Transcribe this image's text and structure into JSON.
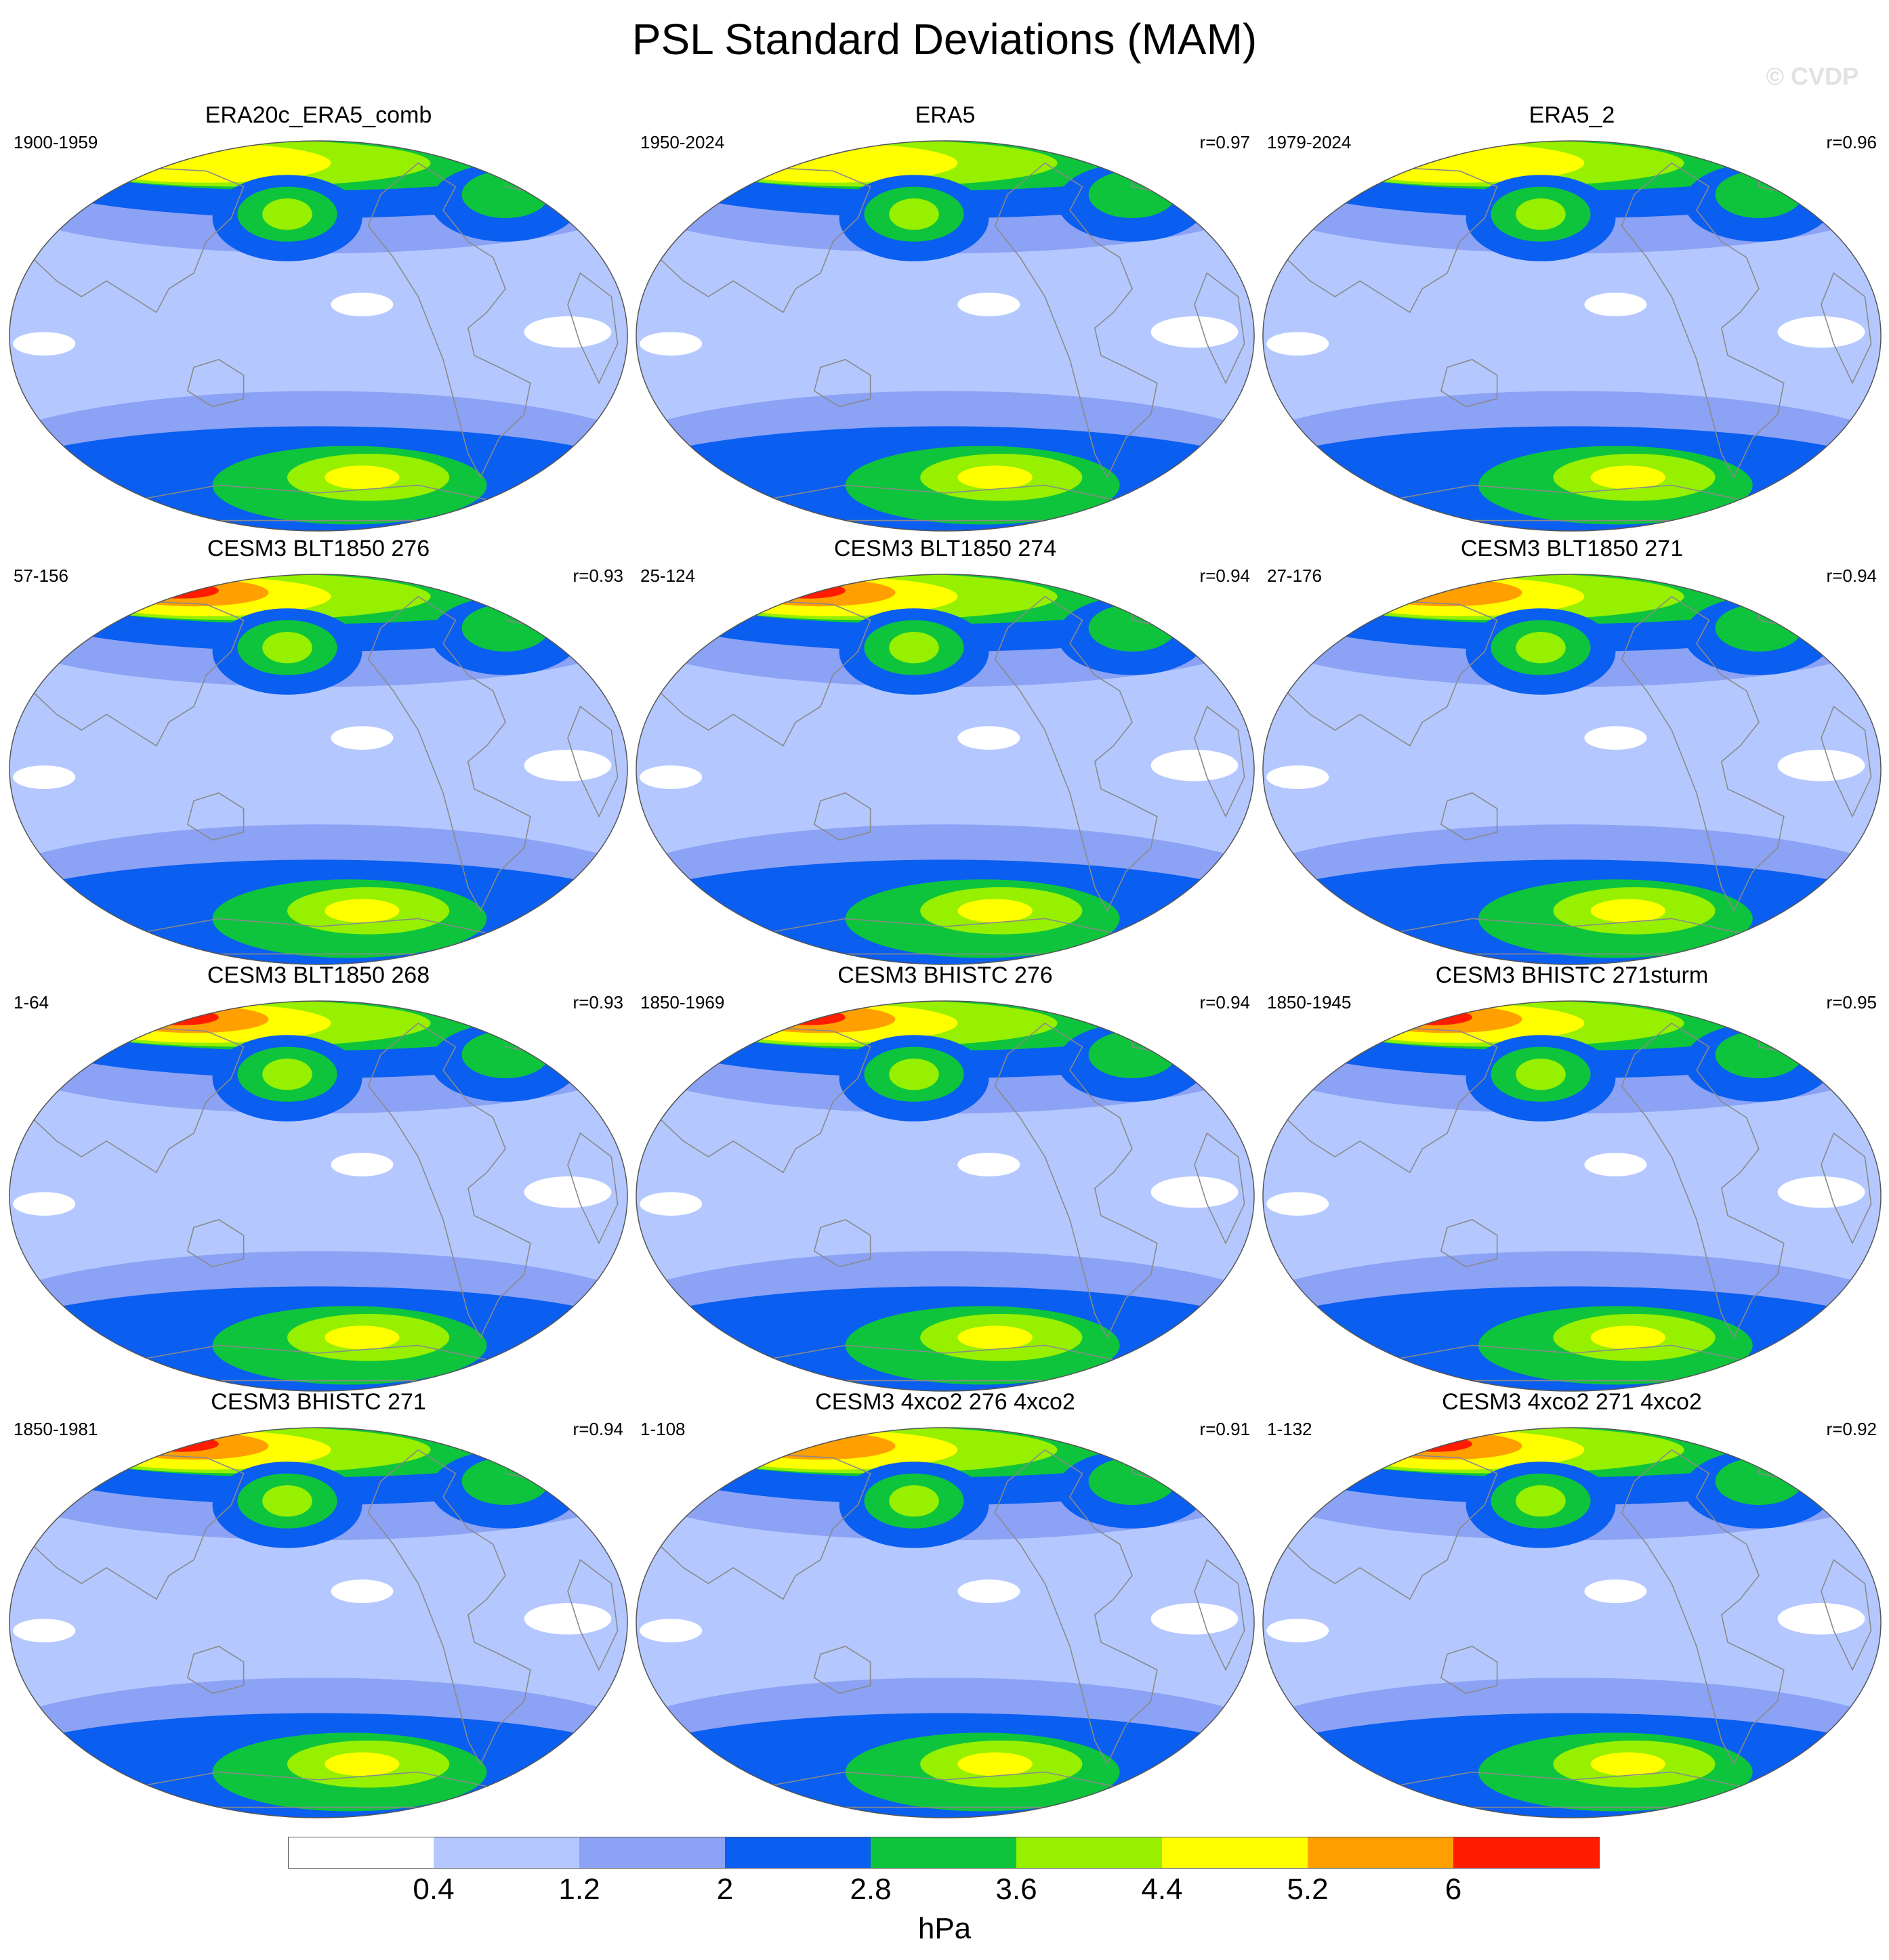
{
  "title": "PSL Standard Deviations (MAM)",
  "watermark": "© CVDP",
  "colorbar": {
    "unit": "hPa",
    "ticks": [
      "0.4",
      "1.2",
      "2",
      "2.8",
      "3.6",
      "4.4",
      "5.2",
      "6"
    ],
    "levels": [
      0.4,
      1.2,
      2.0,
      2.8,
      3.6,
      4.4,
      5.2,
      6.0
    ],
    "colors": [
      "#ffffff",
      "#b4c8ff",
      "#8ca2f5",
      "#0a5ef0",
      "#0ec43c",
      "#96f000",
      "#ffff00",
      "#ffa000",
      "#ff1c00"
    ]
  },
  "panels": [
    {
      "title": "ERA20c_ERA5_comb",
      "years": "1900-1959",
      "r": ""
    },
    {
      "title": "ERA5",
      "years": "1950-2024",
      "r": "r=0.97"
    },
    {
      "title": "ERA5_2",
      "years": "1979-2024",
      "r": "r=0.96"
    },
    {
      "title": "CESM3 BLT1850 276",
      "years": "57-156",
      "r": "r=0.93"
    },
    {
      "title": "CESM3 BLT1850 274",
      "years": "25-124",
      "r": "r=0.94"
    },
    {
      "title": "CESM3 BLT1850 271",
      "years": "27-176",
      "r": "r=0.94"
    },
    {
      "title": "CESM3 BLT1850 268",
      "years": "1-64",
      "r": "r=0.93"
    },
    {
      "title": "CESM3 BHISTC 276",
      "years": "1850-1969",
      "r": "r=0.94"
    },
    {
      "title": "CESM3 BHISTC 271sturm",
      "years": "1850-1945",
      "r": "r=0.95"
    },
    {
      "title": "CESM3 BHISTC 271",
      "years": "1850-1981",
      "r": "r=0.94"
    },
    {
      "title": "CESM3 4xco2 276 4xco2",
      "years": "1-108",
      "r": "r=0.91"
    },
    {
      "title": "CESM3 4xco2 271 4xco2",
      "years": "1-132",
      "r": "r=0.92"
    }
  ],
  "chart_data": {
    "type": "heatmap",
    "title": "PSL Standard Deviations (MAM)",
    "projection": "global map, ellipse outline",
    "contour_levels_hPa": [
      0.4,
      1.2,
      2.0,
      2.8,
      3.6,
      4.4,
      5.2,
      6.0
    ],
    "unit": "hPa",
    "panels": [
      {
        "name": "ERA20c_ERA5_comb",
        "years": "1900-1959",
        "max_class": 6
      },
      {
        "name": "ERA5",
        "years": "1950-2024",
        "r": 0.97,
        "max_class": 6
      },
      {
        "name": "ERA5_2",
        "years": "1979-2024",
        "r": 0.96,
        "max_class": 6
      },
      {
        "name": "CESM3 BLT1850 276",
        "years": "57-156",
        "r": 0.93,
        "max_class": 8
      },
      {
        "name": "CESM3 BLT1850 274",
        "years": "25-124",
        "r": 0.94,
        "max_class": 8
      },
      {
        "name": "CESM3 BLT1850 271",
        "years": "27-176",
        "r": 0.94,
        "max_class": 7
      },
      {
        "name": "CESM3 BLT1850 268",
        "years": "1-64",
        "r": 0.93,
        "max_class": 8
      },
      {
        "name": "CESM3 BHISTC 276",
        "years": "1850-1969",
        "r": 0.94,
        "max_class": 8
      },
      {
        "name": "CESM3 BHISTC 271sturm",
        "years": "1850-1945",
        "r": 0.95,
        "max_class": 8
      },
      {
        "name": "CESM3 BHISTC 271",
        "years": "1850-1981",
        "r": 0.94,
        "max_class": 8
      },
      {
        "name": "CESM3 4xco2 276 4xco2",
        "years": "1-108",
        "r": 0.91,
        "max_class": 7
      },
      {
        "name": "CESM3 4xco2 271 4xco2",
        "years": "1-132",
        "r": 0.92,
        "max_class": 8
      }
    ]
  }
}
